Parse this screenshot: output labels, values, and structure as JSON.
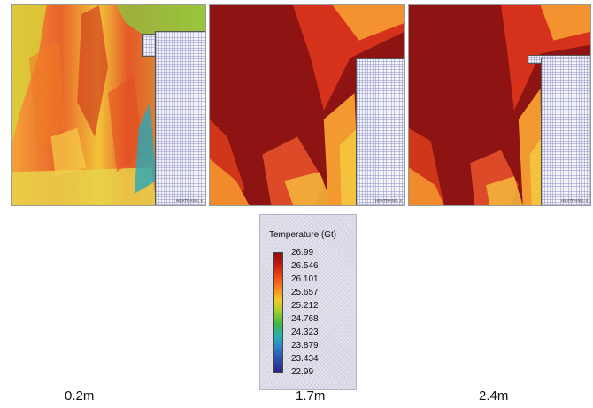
{
  "panels": [
    {
      "id": "a",
      "caption": "0.2m",
      "watermark": "HEATRANS, s"
    },
    {
      "id": "b",
      "caption": "1.7m",
      "watermark": "HEATRANS, s"
    },
    {
      "id": "c",
      "caption": "2.4m",
      "watermark": "HEATRANS, s"
    }
  ],
  "legend": {
    "title": "Temperature (Gt)",
    "ticks": [
      "26.99",
      "26.546",
      "26.101",
      "25.657",
      "25.212",
      "24.768",
      "24.323",
      "23.879",
      "23.434",
      "22.99"
    ]
  },
  "colors": {
    "hot": "#8e0c0c",
    "warm": "#ee4a17",
    "mid": "#f1cb2a",
    "cool": "#3fb548",
    "cold": "#28288a"
  }
}
